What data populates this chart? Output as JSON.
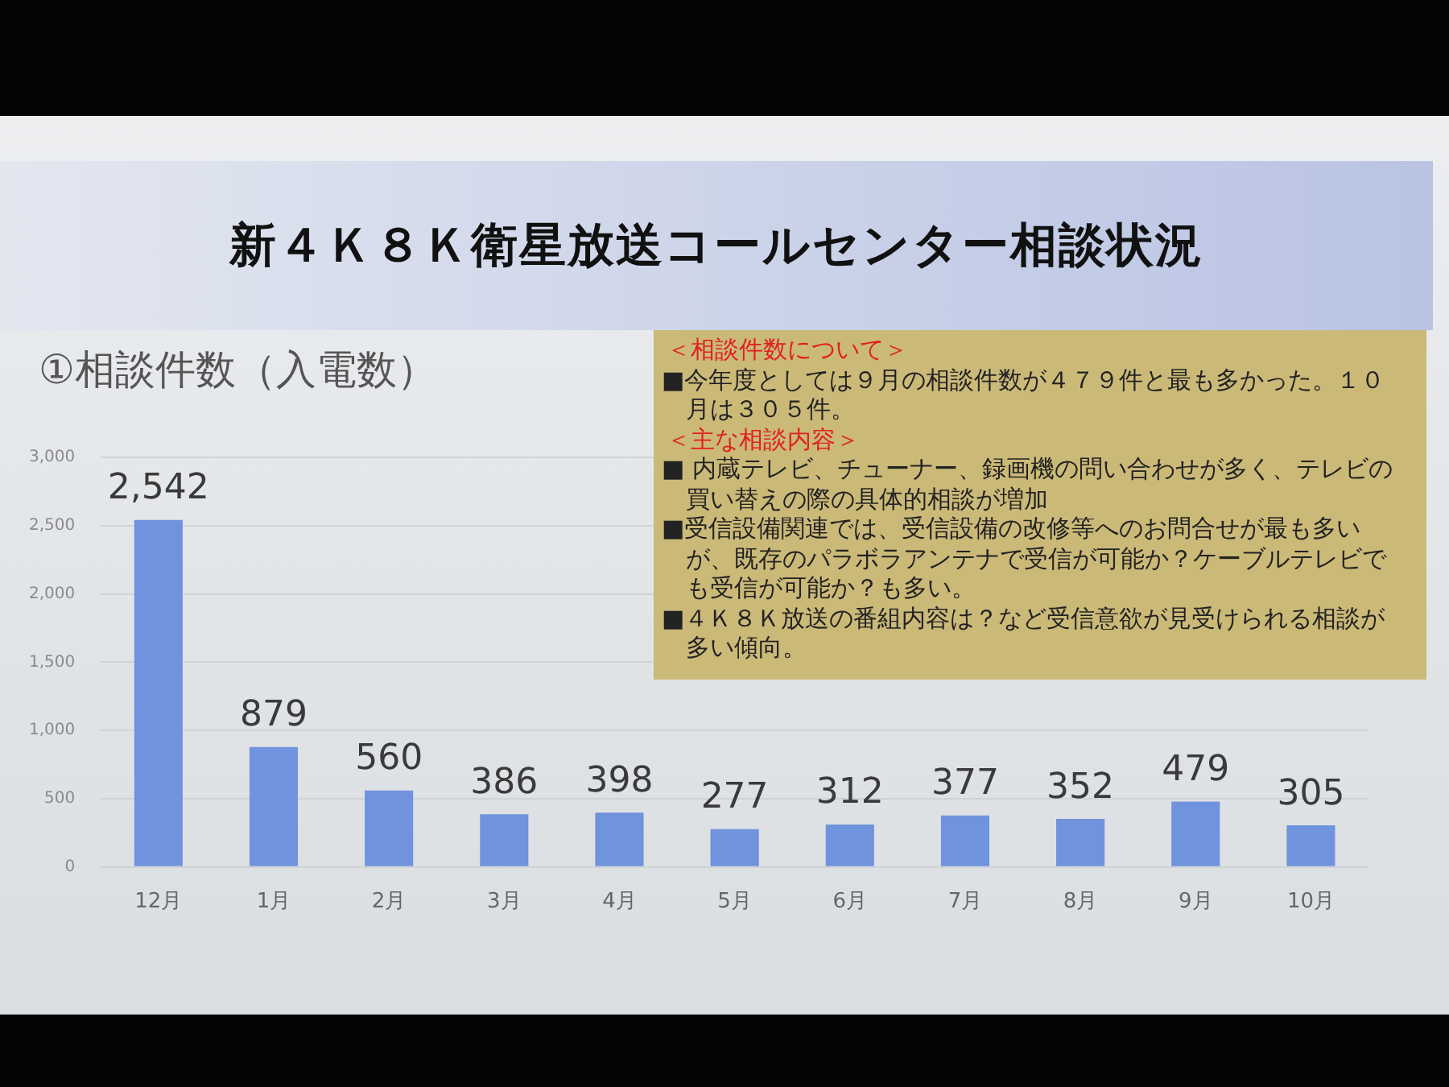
{
  "chart_data": {
    "type": "bar",
    "title": "新４Ｋ８Ｋ衛星放送コールセンター相談状況",
    "subtitle": "①相談件数（入電数）",
    "categories": [
      "12月",
      "1月",
      "2月",
      "3月",
      "4月",
      "5月",
      "6月",
      "7月",
      "8月",
      "9月",
      "10月"
    ],
    "values": [
      2542,
      879,
      560,
      386,
      398,
      277,
      312,
      377,
      352,
      479,
      305
    ],
    "value_labels": [
      "2,542",
      "879",
      "560",
      "386",
      "398",
      "277",
      "312",
      "377",
      "352",
      "479",
      "305"
    ],
    "color": "#6f93dc",
    "ylim": [
      0,
      3000
    ],
    "yticks": [
      {
        "value": 0,
        "label": "0"
      },
      {
        "value": 500,
        "label": "500"
      },
      {
        "value": 1000,
        "label": "1,000"
      },
      {
        "value": 1500,
        "label": "1,500"
      },
      {
        "value": 2000,
        "label": "2,000"
      },
      {
        "value": 2500,
        "label": "2,500"
      },
      {
        "value": 3000,
        "label": "3,000"
      }
    ],
    "grid": "y",
    "legend": false,
    "annotations": [
      "＜相談件数について＞",
      "■今年度としては９月の相談件数が４７９件と最も多かった。１０月は３０５件。",
      "＜主な相談内容＞",
      "■ 内蔵テレビ、チューナー、録画機の問い合わせが多く、テレビの買い替えの際の具体的相談が増加",
      "■受信設備関連では、受信設備の改修等へのお問合せが最も多いが、既存のパラボラアンテナで受信が可能か？ケーブルテレビでも受信が可能か？も多い。",
      "■４Ｋ８Ｋ放送の番組内容は？など受信意欲が見受けられる相談が多い傾向。"
    ]
  }
}
